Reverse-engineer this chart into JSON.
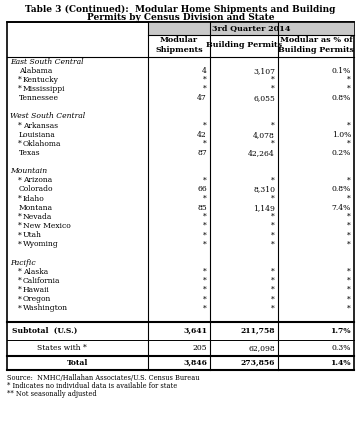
{
  "title_line1": "Table 3 (Continued):  Modular Home Shipments and Building",
  "title_line2": "Permits by Census Division and State",
  "subtitle": "3rd Quarter 2014",
  "rows": [
    {
      "label": "East South Central",
      "indent": 0,
      "italic": true,
      "star": false,
      "vals": [
        "",
        "",
        ""
      ]
    },
    {
      "label": "Alabama",
      "indent": 1,
      "italic": false,
      "star": false,
      "vals": [
        "4",
        "3,107",
        "0.1%"
      ]
    },
    {
      "label": "Kentucky",
      "indent": 1,
      "italic": false,
      "star": true,
      "vals": [
        "*",
        "*",
        "*"
      ]
    },
    {
      "label": "Mississippi",
      "indent": 1,
      "italic": false,
      "star": true,
      "vals": [
        "*",
        "*",
        "*"
      ]
    },
    {
      "label": "Tennessee",
      "indent": 1,
      "italic": false,
      "star": false,
      "vals": [
        "47",
        "6,055",
        "0.8%"
      ]
    },
    {
      "label": "",
      "indent": 0,
      "italic": false,
      "star": false,
      "vals": [
        "",
        "",
        ""
      ]
    },
    {
      "label": "West South Central",
      "indent": 0,
      "italic": true,
      "star": false,
      "vals": [
        "",
        "",
        ""
      ]
    },
    {
      "label": "Arkansas",
      "indent": 1,
      "italic": false,
      "star": true,
      "vals": [
        "*",
        "*",
        "*"
      ]
    },
    {
      "label": "Louisiana",
      "indent": 1,
      "italic": false,
      "star": false,
      "vals": [
        "42",
        "4,078",
        "1.0%"
      ]
    },
    {
      "label": "Oklahoma",
      "indent": 1,
      "italic": false,
      "star": true,
      "vals": [
        "*",
        "*",
        "*"
      ]
    },
    {
      "label": "Texas",
      "indent": 1,
      "italic": false,
      "star": false,
      "vals": [
        "87",
        "42,264",
        "0.2%"
      ]
    },
    {
      "label": "",
      "indent": 0,
      "italic": false,
      "star": false,
      "vals": [
        "",
        "",
        ""
      ]
    },
    {
      "label": "Mountain",
      "indent": 0,
      "italic": true,
      "star": false,
      "vals": [
        "",
        "",
        ""
      ]
    },
    {
      "label": "Arizona",
      "indent": 1,
      "italic": false,
      "star": true,
      "vals": [
        "*",
        "*",
        "*"
      ]
    },
    {
      "label": "Colorado",
      "indent": 1,
      "italic": false,
      "star": false,
      "vals": [
        "66",
        "8,310",
        "0.8%"
      ]
    },
    {
      "label": "Idaho",
      "indent": 1,
      "italic": false,
      "star": true,
      "vals": [
        "*",
        "*",
        "*"
      ]
    },
    {
      "label": "Montana",
      "indent": 1,
      "italic": false,
      "star": false,
      "vals": [
        "85",
        "1,149",
        "7.4%"
      ]
    },
    {
      "label": "Nevada",
      "indent": 1,
      "italic": false,
      "star": true,
      "vals": [
        "*",
        "*",
        "*"
      ]
    },
    {
      "label": "New Mexico",
      "indent": 1,
      "italic": false,
      "star": true,
      "vals": [
        "*",
        "*",
        "*"
      ]
    },
    {
      "label": "Utah",
      "indent": 1,
      "italic": false,
      "star": true,
      "vals": [
        "*",
        "*",
        "*"
      ]
    },
    {
      "label": "Wyoming",
      "indent": 1,
      "italic": false,
      "star": true,
      "vals": [
        "*",
        "*",
        "*"
      ]
    },
    {
      "label": "",
      "indent": 0,
      "italic": false,
      "star": false,
      "vals": [
        "",
        "",
        ""
      ]
    },
    {
      "label": "Pacific",
      "indent": 0,
      "italic": true,
      "star": false,
      "vals": [
        "",
        "",
        ""
      ]
    },
    {
      "label": "Alaska",
      "indent": 1,
      "italic": false,
      "star": true,
      "vals": [
        "*",
        "*",
        "*"
      ]
    },
    {
      "label": "California",
      "indent": 1,
      "italic": false,
      "star": true,
      "vals": [
        "*",
        "*",
        "*"
      ]
    },
    {
      "label": "Hawaii",
      "indent": 1,
      "italic": false,
      "star": true,
      "vals": [
        "*",
        "*",
        "*"
      ]
    },
    {
      "label": "Oregon",
      "indent": 1,
      "italic": false,
      "star": true,
      "vals": [
        "*",
        "*",
        "*"
      ]
    },
    {
      "label": "Washington",
      "indent": 1,
      "italic": false,
      "star": true,
      "vals": [
        "*",
        "*",
        "*"
      ]
    },
    {
      "label": "",
      "indent": 0,
      "italic": false,
      "star": false,
      "vals": [
        "",
        "",
        ""
      ]
    }
  ],
  "subtotal_label": "Subtotal  (U.S.)",
  "subtotal_vals": [
    "3,641",
    "211,758",
    "1.7%"
  ],
  "states_label": "States with *",
  "states_vals": [
    "205",
    "62,098",
    "0.3%"
  ],
  "total_label": "Total",
  "total_vals": [
    "3,846",
    "273,856",
    "1.4%"
  ],
  "footnotes": [
    "Source:  NMHC/Hallahan Associates/U.S. Census Bureau",
    "* Indicates no individual data is available for state",
    "** Not seasonally adjusted"
  ],
  "title_fs": 6.5,
  "header_fs": 5.8,
  "cell_fs": 5.5,
  "footnote_fs": 4.8
}
